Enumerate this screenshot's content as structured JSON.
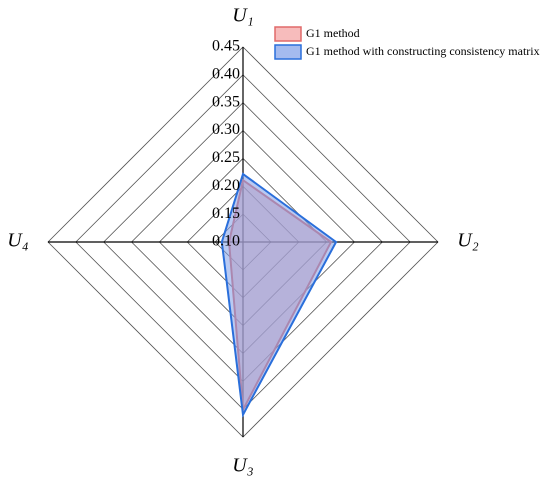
{
  "chart_data": {
    "type": "radar",
    "categories": [
      "U₁",
      "U₂",
      "U₃",
      "U₄"
    ],
    "rlim": [
      0.1,
      0.45
    ],
    "rticks": [
      {
        "value": 0.1,
        "label": "0.10"
      },
      {
        "value": 0.15,
        "label": "0.15"
      },
      {
        "value": 0.2,
        "label": "0.20"
      },
      {
        "value": 0.25,
        "label": "0.25"
      },
      {
        "value": 0.3,
        "label": "0.30"
      },
      {
        "value": 0.35,
        "label": "0.35"
      },
      {
        "value": 0.4,
        "label": "0.40"
      },
      {
        "value": 0.45,
        "label": "0.45"
      }
    ],
    "grid": true,
    "legend": "upper right",
    "series": [
      {
        "name": "G1 method",
        "color": "#e06a6a",
        "fill": "#f4a0a0",
        "values": [
          0.211,
          0.258,
          0.401,
          0.125
        ]
      },
      {
        "name": "G1 method with constructing consistency matrix",
        "color": "#2a6fdb",
        "fill": "#7f9ee8",
        "values": [
          0.222,
          0.267,
          0.41,
          0.138
        ]
      }
    ]
  }
}
